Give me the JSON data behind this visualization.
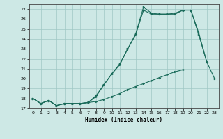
{
  "xlabel": "Humidex (Indice chaleur)",
  "bg_color": "#cde8e5",
  "grid_color": "#a0c8c5",
  "line_color": "#1a6b5a",
  "x_values": [
    0,
    1,
    2,
    3,
    4,
    5,
    6,
    7,
    8,
    9,
    10,
    11,
    12,
    13,
    14,
    15,
    16,
    17,
    18,
    19,
    20,
    21,
    22,
    23
  ],
  "line1_y": [
    18.0,
    17.5,
    17.8,
    17.3,
    17.5,
    17.5,
    17.5,
    17.6,
    18.2,
    19.4,
    20.5,
    21.5,
    23.0,
    24.5,
    27.2,
    26.6,
    26.5,
    26.5,
    26.6,
    26.9,
    26.9,
    24.6,
    21.7,
    20.0
  ],
  "line2_y": [
    18.0,
    17.5,
    17.8,
    17.3,
    17.5,
    17.5,
    17.5,
    17.6,
    18.3,
    19.4,
    20.5,
    21.4,
    23.0,
    24.4,
    26.9,
    26.5,
    26.5,
    26.5,
    26.5,
    26.9,
    26.9,
    24.4,
    21.7,
    null
  ],
  "line3_y": [
    18.0,
    17.5,
    17.8,
    17.3,
    17.5,
    17.5,
    17.5,
    17.6,
    17.7,
    17.9,
    18.2,
    18.5,
    18.9,
    19.2,
    19.5,
    19.8,
    20.1,
    20.4,
    20.7,
    20.9,
    null,
    null,
    null,
    null
  ],
  "xlim": [
    -0.5,
    23.5
  ],
  "ylim": [
    17.0,
    27.5
  ],
  "yticks": [
    17,
    18,
    19,
    20,
    21,
    22,
    23,
    24,
    25,
    26,
    27
  ],
  "xticks": [
    0,
    1,
    2,
    3,
    4,
    5,
    6,
    7,
    8,
    9,
    10,
    11,
    12,
    13,
    14,
    15,
    16,
    17,
    18,
    19,
    20,
    21,
    22,
    23
  ]
}
